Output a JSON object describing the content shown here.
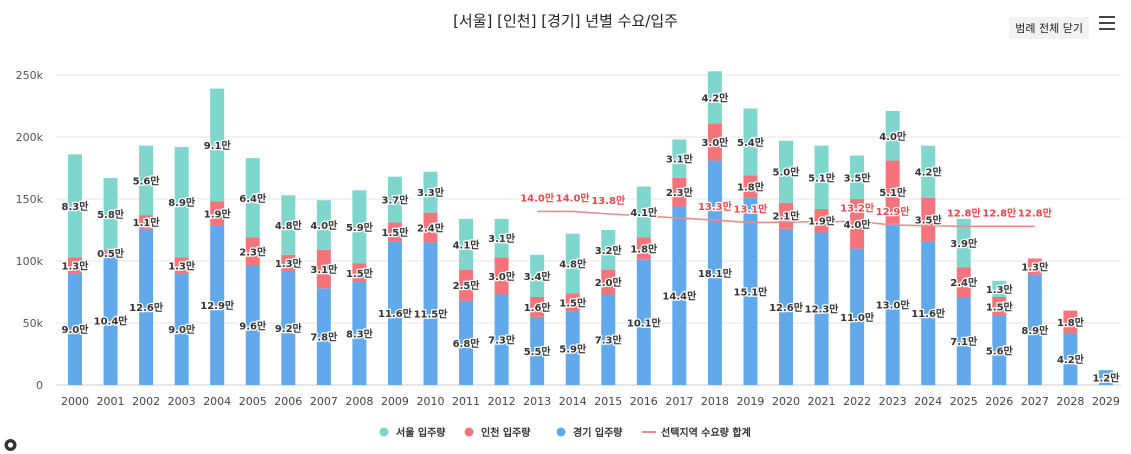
{
  "chart_data": {
    "type": "bar",
    "stacked": true,
    "title": "[서울] [인천] [경기] 년별 수요/입주",
    "legend_toggle_label": "범례 전체 닫기",
    "categories": [
      "2000",
      "2001",
      "2002",
      "2003",
      "2004",
      "2005",
      "2006",
      "2007",
      "2008",
      "2009",
      "2010",
      "2011",
      "2012",
      "2013",
      "2014",
      "2015",
      "2016",
      "2017",
      "2018",
      "2019",
      "2020",
      "2021",
      "2022",
      "2023",
      "2024",
      "2025",
      "2026",
      "2027",
      "2028",
      "2029"
    ],
    "ylim": [
      0,
      250000
    ],
    "yticks": [
      0,
      50000,
      100000,
      150000,
      200000,
      250000
    ],
    "ytick_labels": [
      "0",
      "50k",
      "100k",
      "150k",
      "200k",
      "250k"
    ],
    "grid": true,
    "legend_position": "bottom",
    "series": [
      {
        "name": "경기 입주량",
        "color": "#62a9ec",
        "values": [
          90000,
          104000,
          126000,
          90000,
          129000,
          96000,
          92000,
          78000,
          83000,
          116000,
          115000,
          68000,
          73000,
          55000,
          59000,
          73000,
          101000,
          144000,
          181000,
          151000,
          126000,
          123000,
          110000,
          130000,
          116000,
          71000,
          56000,
          89000,
          42000,
          12000
        ],
        "labels": [
          "9.0만",
          "10.4만",
          "12.6만",
          "9.0만",
          "12.9만",
          "9.6만",
          "9.2만",
          "7.8만",
          "8.3만",
          "11.6만",
          "11.5만",
          "6.8만",
          "7.3만",
          "5.5만",
          "5.9만",
          "7.3만",
          "10.1만",
          "14.4만",
          "18.1만",
          "15.1만",
          "12.6만",
          "12.3만",
          "11.0만",
          "13.0만",
          "11.6만",
          "7.1만",
          "5.6만",
          "8.9만",
          "4.2만",
          "1.2만"
        ]
      },
      {
        "name": "인천 입주량",
        "color": "#f5737a",
        "values": [
          13000,
          5000,
          11000,
          13000,
          19000,
          23000,
          13000,
          31000,
          15000,
          15000,
          24000,
          25000,
          30000,
          16000,
          15000,
          20000,
          18000,
          23000,
          30000,
          18000,
          21000,
          19000,
          40000,
          51000,
          35000,
          24000,
          15000,
          13000,
          18000,
          0
        ],
        "labels": [
          "1.3만",
          "0.5만",
          "1.1만",
          "1.3만",
          "1.9만",
          "2.3만",
          "1.3만",
          "3.1만",
          "1.5만",
          "1.5만",
          "2.4만",
          "2.5만",
          "3.0만",
          "1.6만",
          "1.5만",
          "2.0만",
          "1.8만",
          "2.3만",
          "3.0만",
          "1.8만",
          "2.1만",
          "1.9만",
          "4.0만",
          "5.1만",
          "3.5만",
          "2.4만",
          "1.5만",
          "1.3만",
          "1.8만",
          ""
        ]
      },
      {
        "name": "서울 입주량",
        "color": "#7ed6cd",
        "values": [
          83000,
          58000,
          56000,
          89000,
          91000,
          64000,
          48000,
          40000,
          59000,
          37000,
          33000,
          41000,
          31000,
          34000,
          48000,
          32000,
          41000,
          31000,
          42000,
          54000,
          50000,
          51000,
          35000,
          40000,
          42000,
          39000,
          13000,
          0,
          0,
          0
        ],
        "labels": [
          "8.3만",
          "5.8만",
          "5.6만",
          "8.9만",
          "9.1만",
          "6.4만",
          "4.8만",
          "4.0만",
          "5.9만",
          "3.7만",
          "3.3만",
          "4.1만",
          "3.1만",
          "3.4만",
          "4.8만",
          "3.2만",
          "4.1만",
          "3.1만",
          "4.2만",
          "5.4만",
          "5.0만",
          "5.1만",
          "3.5만",
          "4.0만",
          "4.2만",
          "3.9만",
          "1.3만",
          "",
          "",
          ""
        ]
      }
    ],
    "line": {
      "name": "선택지역 수요량 합계",
      "color": "#f08a8a",
      "label_color": "#f0454a",
      "values": [
        null,
        null,
        null,
        null,
        null,
        null,
        null,
        null,
        null,
        null,
        null,
        null,
        null,
        140000,
        140000,
        138000,
        null,
        null,
        133000,
        131000,
        null,
        null,
        132000,
        129000,
        null,
        128000,
        128000,
        128000,
        null,
        null
      ],
      "labels": [
        "",
        "",
        "",
        "",
        "",
        "",
        "",
        "",
        "",
        "",
        "",
        "",
        "",
        "14.0만",
        "14.0만",
        "13.8만",
        "",
        "",
        "13.3만",
        "13.1만",
        "",
        "",
        "13.2만",
        "12.9만",
        "",
        "12.8만",
        "12.8만",
        "12.8만",
        "",
        ""
      ]
    },
    "legend": [
      {
        "name": "서울 입주량",
        "color": "#7ed6cd",
        "symbol": "dot"
      },
      {
        "name": "인천 입주량",
        "color": "#f5737a",
        "symbol": "dot"
      },
      {
        "name": "경기 입주량",
        "color": "#62a9ec",
        "symbol": "dot"
      },
      {
        "name": "선택지역 수요량 합계",
        "color": "#f08a8a",
        "symbol": "line"
      }
    ]
  }
}
